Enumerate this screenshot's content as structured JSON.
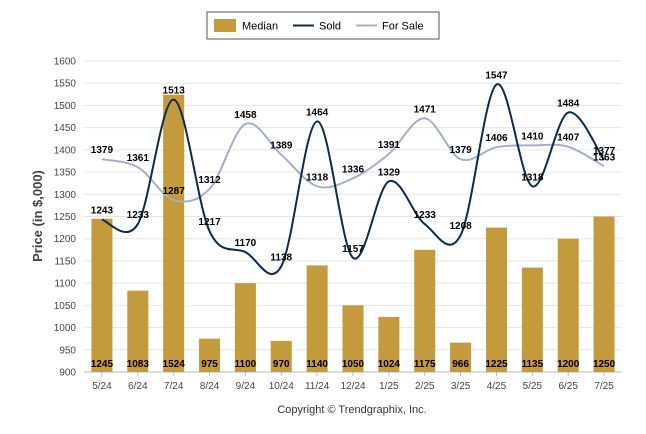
{
  "chart_data": {
    "type": "bar",
    "categories": [
      "5/24",
      "6/24",
      "7/24",
      "8/24",
      "9/24",
      "10/24",
      "11/24",
      "12/24",
      "1/25",
      "2/25",
      "3/25",
      "4/25",
      "5/25",
      "6/25",
      "7/25"
    ],
    "series": [
      {
        "name": "Median",
        "type": "bar",
        "values": [
          1245,
          1083,
          1524,
          975,
          1100,
          970,
          1140,
          1050,
          1024,
          1175,
          966,
          1225,
          1135,
          1200,
          1250
        ]
      },
      {
        "name": "Sold",
        "type": "line",
        "values": [
          1243,
          1233,
          1513,
          1217,
          1170,
          1138,
          1464,
          1157,
          1329,
          1233,
          1208,
          1547,
          1318,
          1484,
          1377
        ]
      },
      {
        "name": "For Sale",
        "type": "line",
        "values": [
          1379,
          1361,
          1287,
          1312,
          1458,
          1389,
          1318,
          1336,
          1391,
          1471,
          1379,
          1406,
          1410,
          1407,
          1363
        ]
      }
    ],
    "ylabel": "Price (in $,000)",
    "xlabel": "",
    "ylim": [
      900,
      1600
    ],
    "yticks": [
      900,
      950,
      1000,
      1050,
      1100,
      1150,
      1200,
      1250,
      1300,
      1350,
      1400,
      1450,
      1500,
      1550,
      1600
    ],
    "legend_position": "top-center",
    "grid": true
  },
  "colors": {
    "median": "#c39a3c",
    "sold": "#0f2a4a",
    "for_sale": "#a4b0c8"
  },
  "copyright": "Copyright © Trendgraphix, Inc."
}
